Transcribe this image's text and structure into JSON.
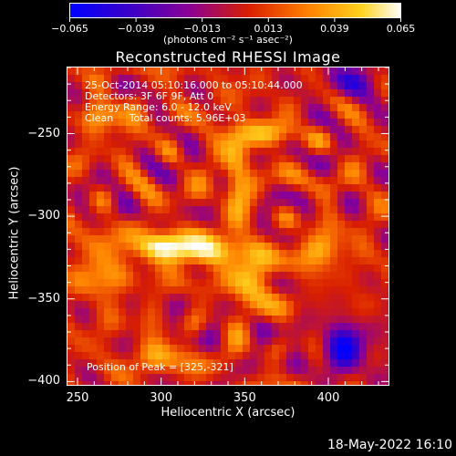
{
  "chart_data": {
    "type": "heatmap",
    "title": "Reconstructed RHESSI Image",
    "xlabel": "Heliocentric X (arcsec)",
    "ylabel": "Heliocentric Y (arcsec)",
    "xlim": [
      244,
      436
    ],
    "ylim": [
      -402,
      -210
    ],
    "xticks": [
      250,
      300,
      350,
      400
    ],
    "yticks": [
      -250,
      -300,
      -350,
      -400
    ],
    "xtick_labels": [
      "250",
      "300",
      "350",
      "400"
    ],
    "ytick_labels": [
      "−250",
      "−300",
      "−350",
      "−400"
    ],
    "colorbar": {
      "range": [
        -0.065,
        0.065
      ],
      "ticks": [
        -0.065,
        -0.039,
        -0.013,
        0.013,
        0.039,
        0.065
      ],
      "tick_labels": [
        "−0.065",
        "−0.039",
        "−0.013",
        "0.013",
        "0.039",
        "0.065"
      ],
      "unit_label": "(photons cm⁻² s⁻¹ asec⁻²)"
    },
    "annotations": [
      "25-Oct-2014 05:10:16.000 to 05:10:44.000",
      "Detectors: 3F 6F 9F, Att 0",
      "Energy Range: 6.0 - 12.0 keV",
      "Clean     Total counts: 5.96E+03"
    ],
    "peak_label": "Position of Peak = [325,-321]",
    "peak": [
      325,
      -321
    ],
    "grid": "off",
    "colormap": [
      "#0000ff",
      "#3a00c8",
      "#8a0096",
      "#d81e00",
      "#ff8200",
      "#ffd21e",
      "#ffffff"
    ]
  },
  "footer": {
    "timestamp": "18-May-2022 16:10"
  }
}
